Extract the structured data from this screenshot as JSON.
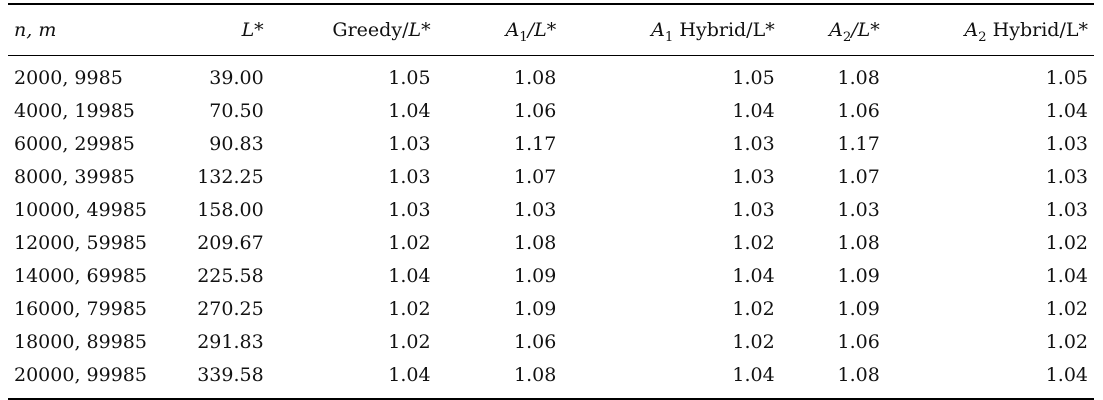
{
  "table": {
    "headers": {
      "c0": "n, m",
      "c1": "L*",
      "c2_prefix": "Greedy/",
      "c2_suffix": "L*",
      "c3_var": "A",
      "c3_sub": "1",
      "c3_suffix": "/L*",
      "c4_var": "A",
      "c4_sub": "1",
      "c4_suffix": " Hybrid/L*",
      "c5_var": "A",
      "c5_sub": "2",
      "c5_suffix": "/L*",
      "c6_var": "A",
      "c6_sub": "2",
      "c6_suffix": " Hybrid/L*"
    },
    "rows": [
      [
        "2000, 9985",
        "39.00",
        "1.05",
        "1.08",
        "1.05",
        "1.08",
        "1.05"
      ],
      [
        "4000, 19985",
        "70.50",
        "1.04",
        "1.06",
        "1.04",
        "1.06",
        "1.04"
      ],
      [
        "6000, 29985",
        "90.83",
        "1.03",
        "1.17",
        "1.03",
        "1.17",
        "1.03"
      ],
      [
        "8000, 39985",
        "132.25",
        "1.03",
        "1.07",
        "1.03",
        "1.07",
        "1.03"
      ],
      [
        "10000, 49985",
        "158.00",
        "1.03",
        "1.03",
        "1.03",
        "1.03",
        "1.03"
      ],
      [
        "12000, 59985",
        "209.67",
        "1.02",
        "1.08",
        "1.02",
        "1.08",
        "1.02"
      ],
      [
        "14000, 69985",
        "225.58",
        "1.04",
        "1.09",
        "1.04",
        "1.09",
        "1.04"
      ],
      [
        "16000, 79985",
        "270.25",
        "1.02",
        "1.09",
        "1.02",
        "1.09",
        "1.02"
      ],
      [
        "18000, 89985",
        "291.83",
        "1.02",
        "1.06",
        "1.02",
        "1.06",
        "1.02"
      ],
      [
        "20000, 99985",
        "339.58",
        "1.04",
        "1.08",
        "1.04",
        "1.08",
        "1.04"
      ]
    ]
  }
}
